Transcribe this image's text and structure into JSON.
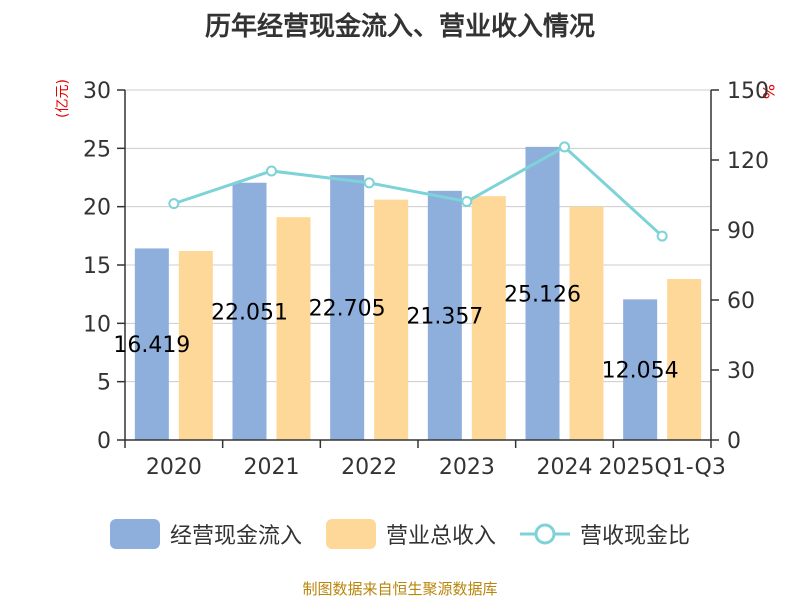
{
  "title": "历年经营现金流入、营业收入情况",
  "unit_left": "(亿元)",
  "unit_right": "%",
  "source": "制图数据来自恒生聚源数据库",
  "colors": {
    "cash_inflow": "#8eaedb",
    "revenue": "#fed898",
    "ratio": "#7dd3d8",
    "axis": "#333333",
    "grid": "#cccccc"
  },
  "chart_data": {
    "type": "bar",
    "title": "历年经营现金流入、营业收入情况",
    "categories": [
      "2020",
      "2021",
      "2022",
      "2023",
      "2024",
      "2025Q1-Q3"
    ],
    "series": [
      {
        "name": "经营现金流入",
        "type": "bar",
        "axis": "left",
        "values": [
          16.419,
          22.051,
          22.705,
          21.357,
          25.126,
          12.054
        ]
      },
      {
        "name": "营业总收入",
        "type": "bar",
        "axis": "left",
        "values": [
          16.2,
          19.1,
          20.6,
          20.9,
          20.0,
          13.8
        ]
      },
      {
        "name": "营收现金比",
        "type": "line",
        "axis": "right",
        "values": [
          101.3,
          115.3,
          110.2,
          102.2,
          125.6,
          87.4
        ]
      }
    ],
    "data_labels": [
      "16.419",
      "22.051",
      "22.705",
      "21.357",
      "25.126",
      "12.054"
    ],
    "ylim_left": [
      0,
      30
    ],
    "yticks_left": [
      0,
      5,
      10,
      15,
      20,
      25,
      30
    ],
    "ylim_right": [
      0,
      150
    ],
    "yticks_right": [
      0,
      30,
      60,
      90,
      120,
      150
    ],
    "legend_position": "bottom",
    "grid": true
  }
}
